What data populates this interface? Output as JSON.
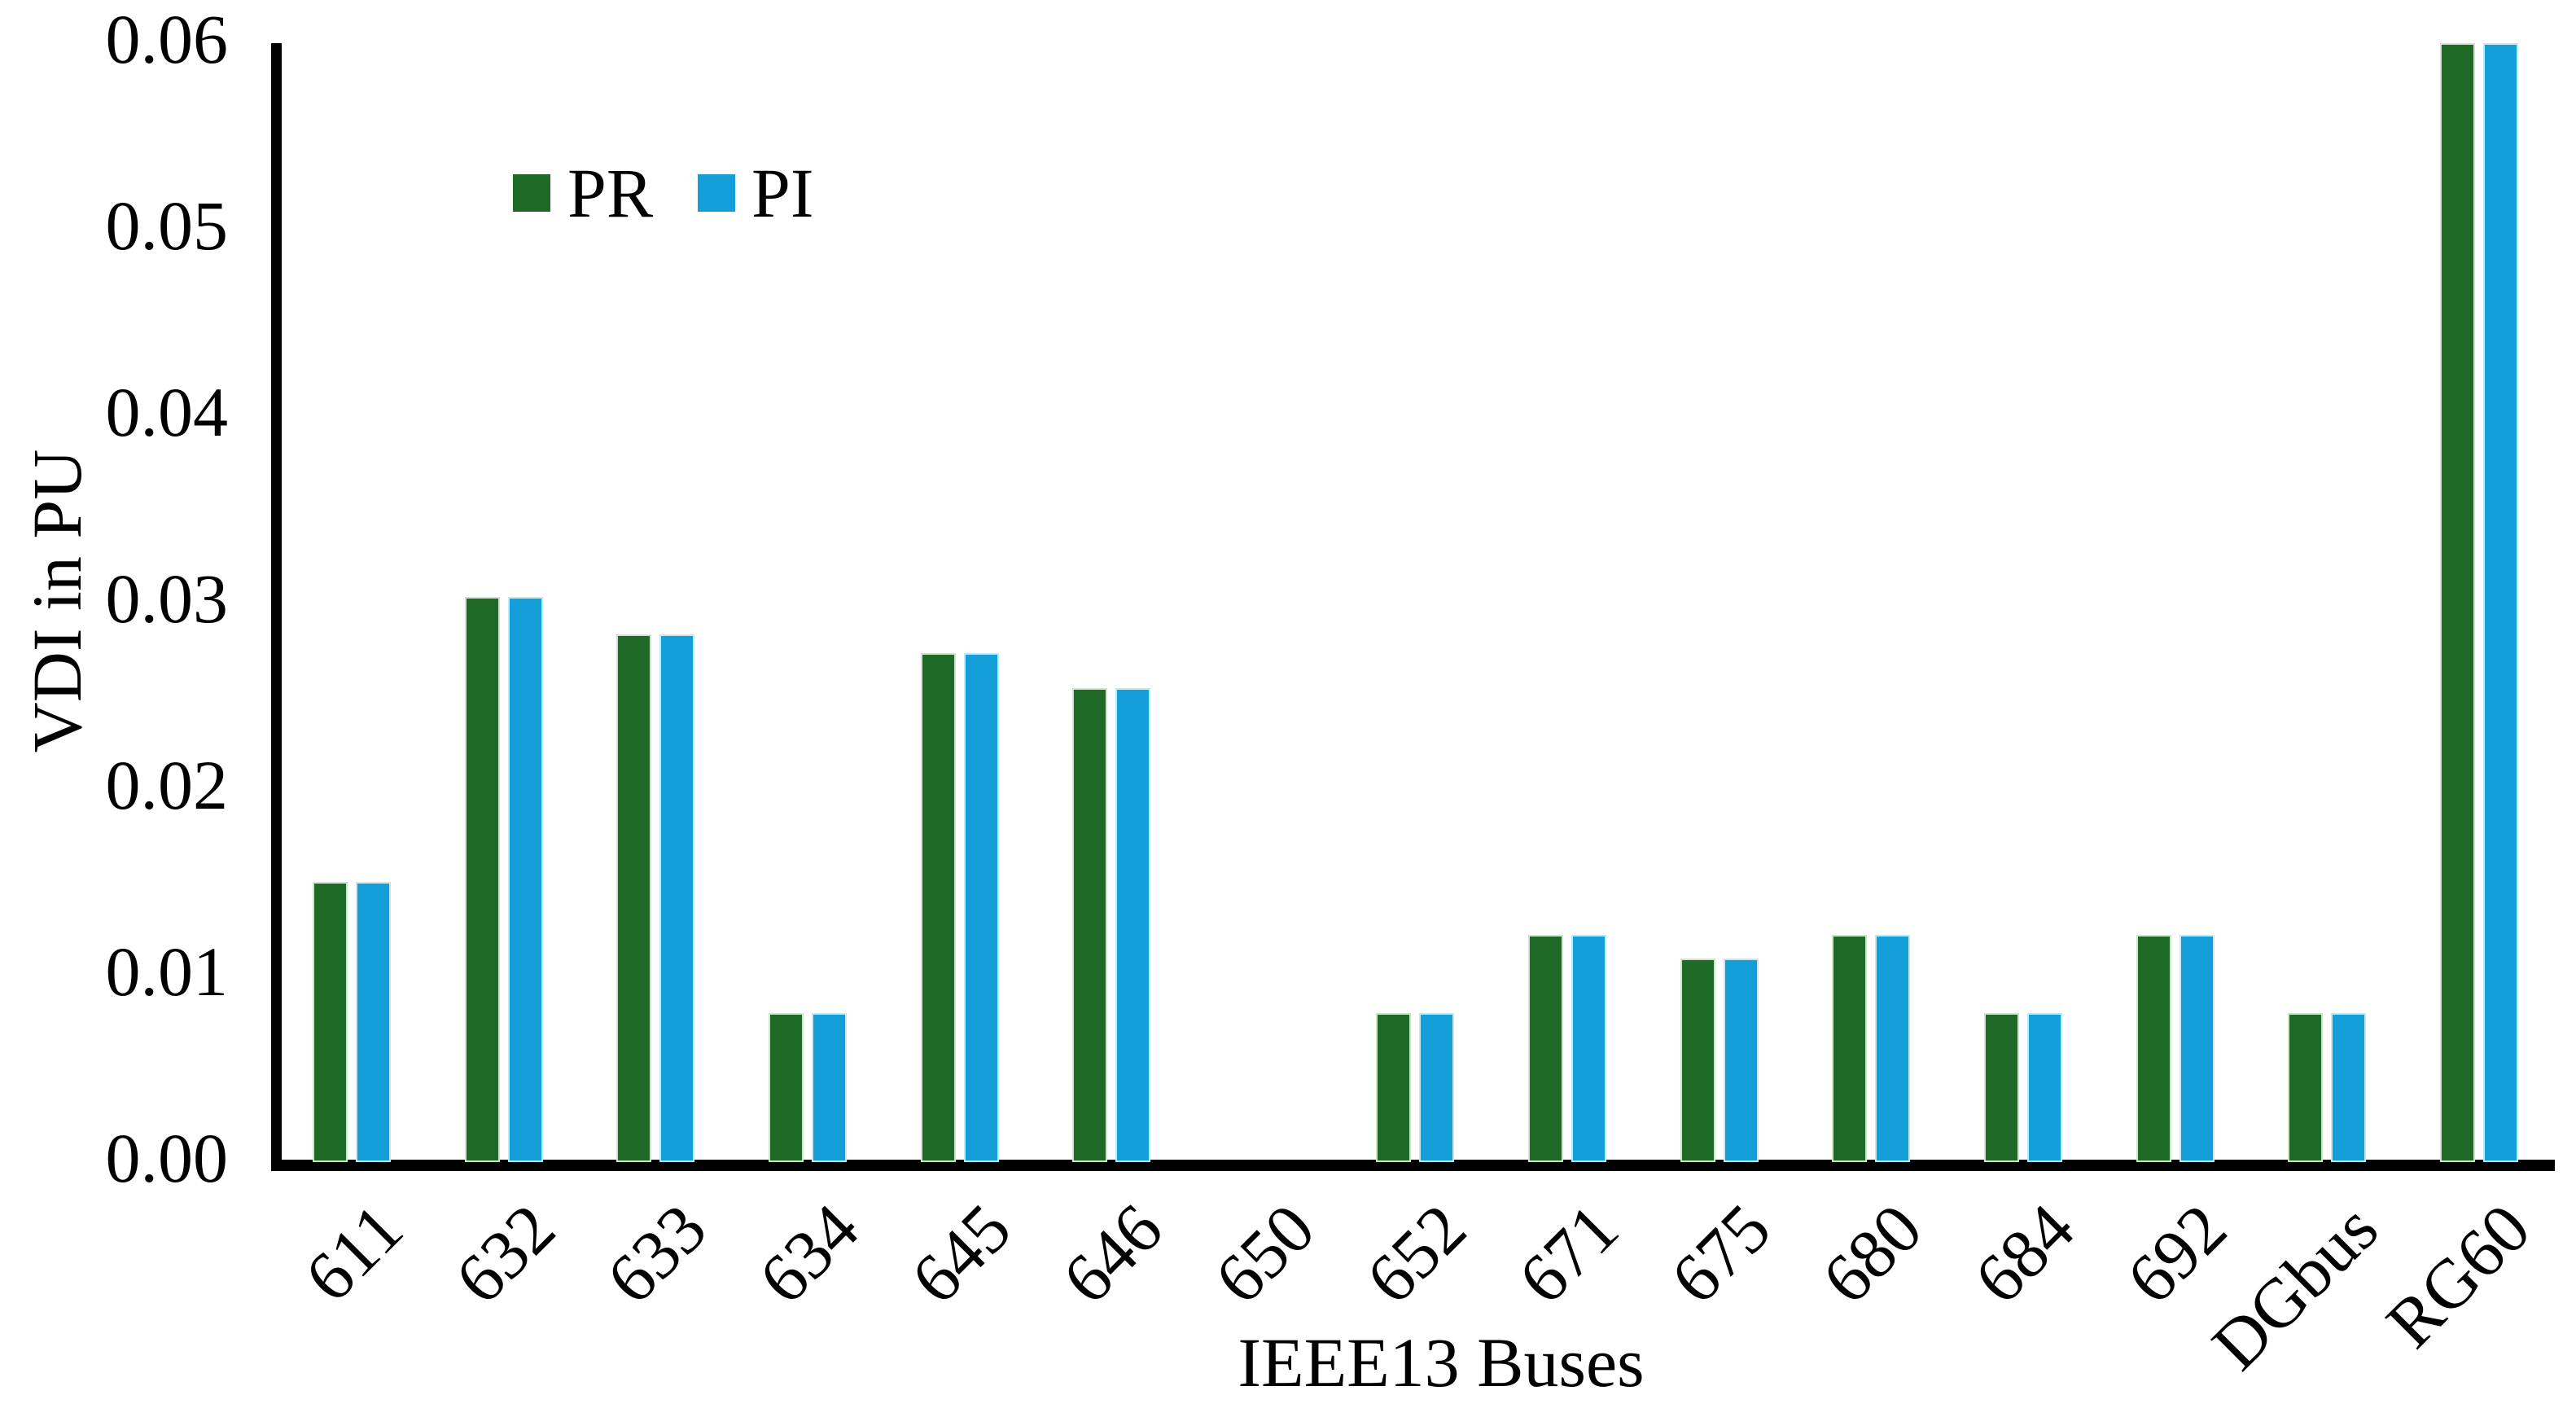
{
  "chart_data": {
    "type": "bar",
    "title": "",
    "xlabel": "IEEE13 Buses",
    "ylabel": "VDI in PU",
    "ylim": [
      0,
      0.06
    ],
    "ytick_labels": [
      "0.00",
      "0.01",
      "0.02",
      "0.03",
      "0.04",
      "0.05",
      "0.06"
    ],
    "ytick_values": [
      0,
      0.01,
      0.02,
      0.03,
      0.04,
      0.05,
      0.06
    ],
    "categories": [
      "611",
      "632",
      "633",
      "634",
      "645",
      "646",
      "650",
      "652",
      "671",
      "675",
      "680",
      "684",
      "692",
      "DGbus",
      "RG60"
    ],
    "series": [
      {
        "name": "PR",
        "color": "#1e6a26",
        "edge_color": "#cfe3cb",
        "values": [
          0.015,
          0.0303,
          0.0283,
          0.008,
          0.0273,
          0.0254,
          0,
          0.008,
          0.0122,
          0.0109,
          0.0122,
          0.008,
          0.0122,
          0.008,
          0.06
        ]
      },
      {
        "name": "PI",
        "color": "#149fd8",
        "edge_color": "#c2e7f6",
        "values": [
          0.015,
          0.0303,
          0.0283,
          0.008,
          0.0273,
          0.0254,
          0,
          0.008,
          0.0122,
          0.0109,
          0.0122,
          0.008,
          0.0122,
          0.008,
          0.06
        ]
      }
    ],
    "legend_position": "inside-top-left",
    "grid": false,
    "background_color": "#ffffff",
    "axis_color": "#000000"
  }
}
